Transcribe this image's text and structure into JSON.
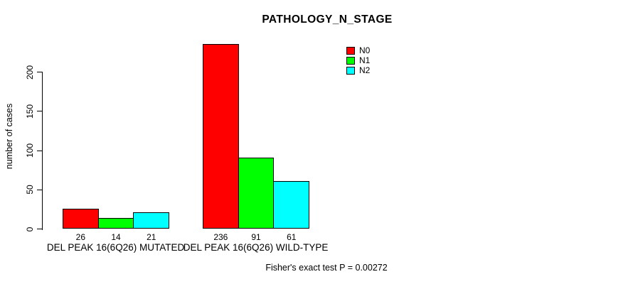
{
  "chart_data": {
    "type": "bar",
    "title": "PATHOLOGY_N_STAGE",
    "xlabel": "",
    "ylabel": "number of cases",
    "ylim": [
      0,
      200
    ],
    "yticks": [
      0,
      50,
      100,
      150,
      200
    ],
    "grid": false,
    "legend_position": "top-right",
    "categories": [
      "DEL PEAK 16(6Q26) MUTATED",
      "DEL PEAK 16(6Q26) WILD-TYPE"
    ],
    "series": [
      {
        "name": "N0",
        "color": "#ff0000",
        "values": [
          26,
          236
        ]
      },
      {
        "name": "N1",
        "color": "#00ff00",
        "values": [
          14,
          91
        ]
      },
      {
        "name": "N2",
        "color": "#00ffff",
        "values": [
          21,
          61
        ]
      }
    ],
    "bar_value_labels": [
      [
        "26",
        "14",
        "21"
      ],
      [
        "236",
        "91",
        "61"
      ]
    ],
    "annotation": "Fisher's exact test P = 0.00272"
  },
  "colors": {
    "background": "#ffffff",
    "text": "#000000",
    "bar_border": "#000000"
  }
}
